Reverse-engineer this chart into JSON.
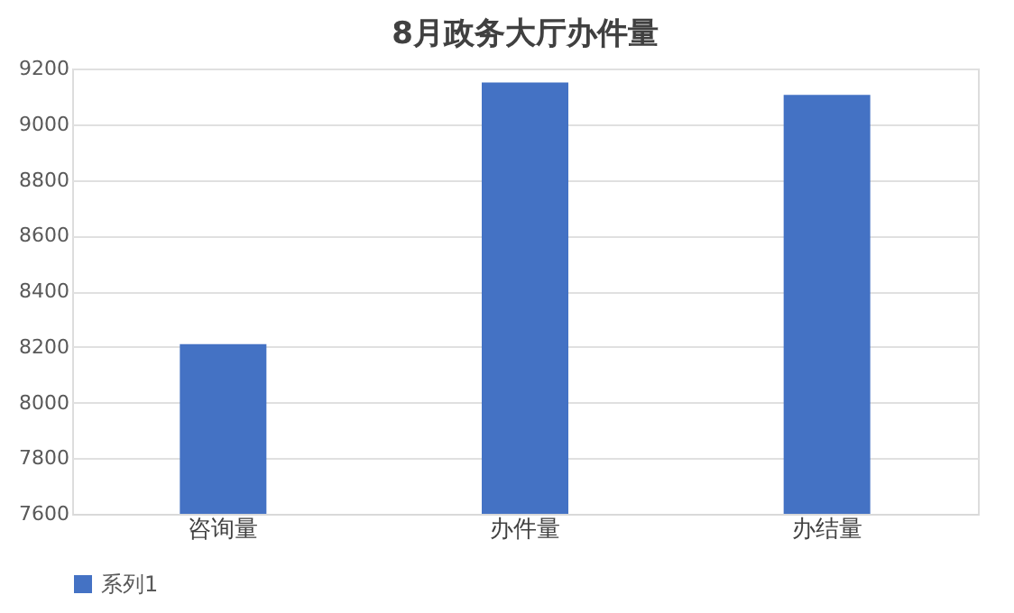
{
  "chart_data": {
    "type": "bar",
    "title": "8月政务大厅办件量",
    "categories": [
      "咨询量",
      "办件量",
      "办结量"
    ],
    "series": [
      {
        "name": "系列1",
        "color": "#4472c4",
        "values": [
          8210,
          9150,
          9105
        ]
      }
    ],
    "ylim": [
      7600,
      9200
    ],
    "yticks": [
      7600,
      7800,
      8000,
      8200,
      8400,
      8600,
      8800,
      9000,
      9200
    ],
    "grid": "y",
    "legend": "bottom"
  }
}
